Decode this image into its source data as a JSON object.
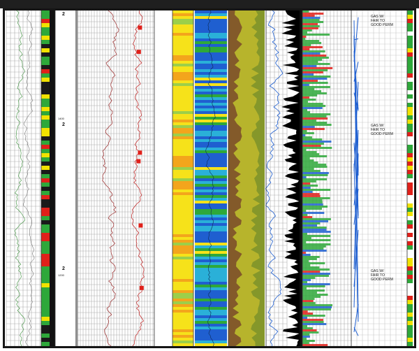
{
  "annotations": [
    {
      "lines": [
        "GAS W/",
        "FAIR TO",
        "GOOD PERM"
      ]
    },
    {
      "lines": [
        "GAS W/",
        "FAIR TO",
        "GOOD PERM"
      ]
    },
    {
      "lines": [
        "GAS W/",
        "FAIR TO",
        "GOOD PERM"
      ]
    }
  ],
  "depth_labels": [
    "1400",
    "1200"
  ],
  "zone_markers": [
    "2",
    "2",
    "2"
  ],
  "colors": {
    "frame": "#151515",
    "grid": "#9c9c9c",
    "yellow": "#f6e21a",
    "orange": "#f3a51c",
    "blue": "#1f5fd0",
    "green": "#2ea83a",
    "olive": "#b7b42c",
    "brown": "#7a4a2a",
    "black": "#000000",
    "red": "#e0201a"
  }
}
